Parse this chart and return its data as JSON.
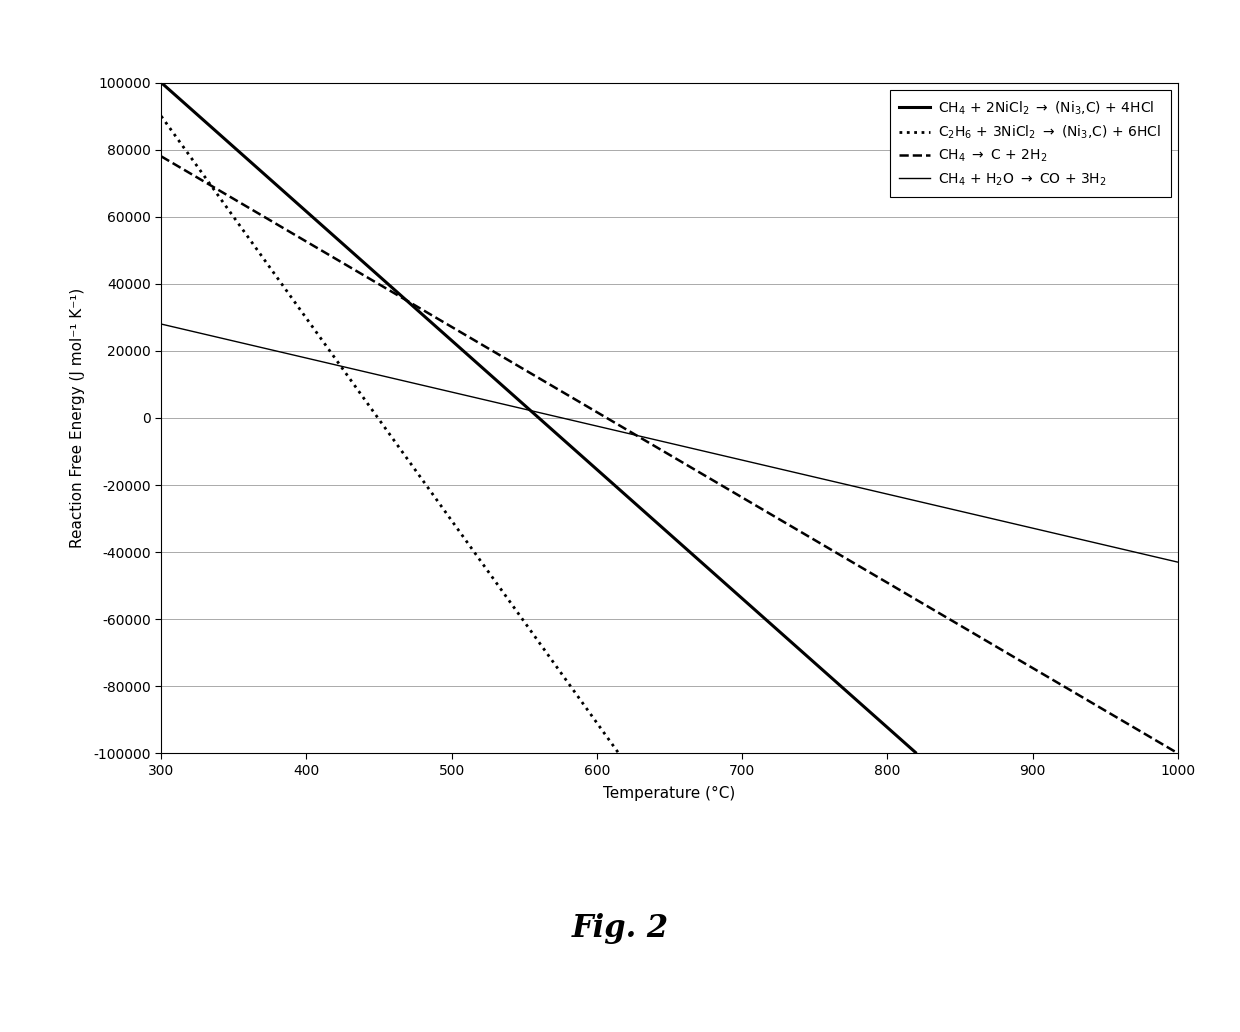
{
  "xlabel": "Temperature (°C)",
  "ylabel": "Reaction Free Energy (J mol⁻¹ K⁻¹)",
  "ylim": [
    -100000,
    100000
  ],
  "xlim": [
    300,
    1000
  ],
  "yticks": [
    -100000,
    -80000,
    -60000,
    -40000,
    -20000,
    0,
    20000,
    40000,
    60000,
    80000,
    100000
  ],
  "xticks": [
    300,
    400,
    500,
    600,
    700,
    800,
    900,
    1000
  ],
  "fig_caption": "Fig. 2",
  "lines": [
    {
      "label": "CH$_4$ + 2NiCl$_2$ $\\rightarrow$ (Ni$_3$,C) + 4HCl",
      "x": [
        300,
        820
      ],
      "y": [
        100000,
        -100000
      ],
      "style": "solid",
      "linewidth": 2.2,
      "color": "#000000",
      "zorder": 4
    },
    {
      "label": "C$_2$H$_6$ + 3NiCl$_2$ $\\rightarrow$ (Ni$_3$,C) + 6HCl",
      "x": [
        300,
        615
      ],
      "y": [
        90000,
        -100000
      ],
      "style": "dotted",
      "linewidth": 2.0,
      "color": "#000000",
      "zorder": 3
    },
    {
      "label": "CH$_4$ $\\rightarrow$ C + 2H$_2$",
      "x": [
        300,
        1000
      ],
      "y": [
        78000,
        -100000
      ],
      "style": "dashed",
      "linewidth": 1.8,
      "color": "#000000",
      "zorder": 2
    },
    {
      "label": "CH$_4$ + H$_2$O $\\rightarrow$ CO + 3H$_2$",
      "x": [
        300,
        1000
      ],
      "y": [
        28000,
        -43000
      ],
      "style": "solid",
      "linewidth": 1.0,
      "color": "#000000",
      "zorder": 2
    }
  ],
  "legend_loc": "upper right",
  "background_color": "#ffffff",
  "plot_bg_color": "#ffffff",
  "grid_color": "#aaaaaa",
  "axis_fontsize": 11,
  "tick_fontsize": 10,
  "legend_fontsize": 10
}
